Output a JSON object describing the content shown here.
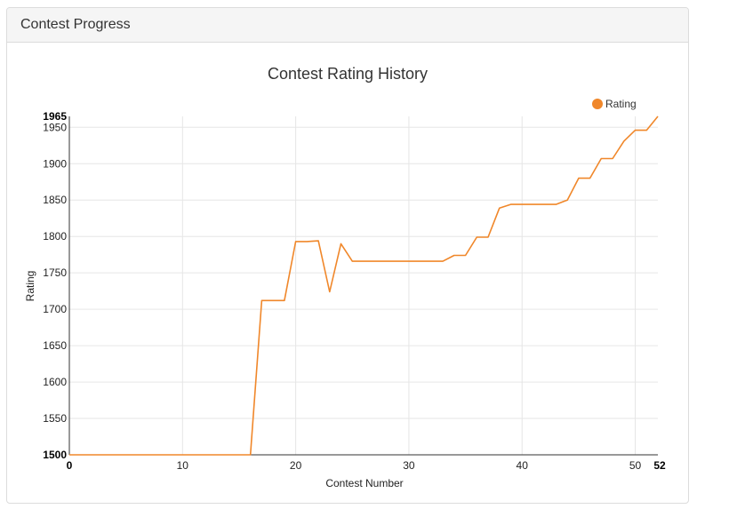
{
  "panel": {
    "title": "Contest Progress"
  },
  "chart_data": {
    "type": "line",
    "title": "Contest Rating History",
    "xlabel": "Contest Number",
    "ylabel": "Rating",
    "xlim": [
      0,
      52
    ],
    "ylim": [
      1500,
      1965
    ],
    "x_ticks": [
      0,
      10,
      20,
      30,
      40,
      50,
      52
    ],
    "x_tick_labels": [
      "0",
      "10",
      "20",
      "30",
      "40",
      "50",
      "52"
    ],
    "y_ticks": [
      1500,
      1550,
      1600,
      1650,
      1700,
      1750,
      1800,
      1850,
      1900,
      1950,
      1965
    ],
    "y_tick_labels": [
      "1500",
      "1550",
      "1600",
      "1650",
      "1700",
      "1750",
      "1800",
      "1850",
      "1900",
      "1950",
      "1965"
    ],
    "grid": true,
    "legend": "top-right",
    "series": [
      {
        "name": "Rating",
        "color": "#f0872a",
        "x": [
          0,
          16,
          17,
          18,
          19,
          20,
          21,
          22,
          23,
          24,
          25,
          26,
          27,
          28,
          29,
          30,
          31,
          32,
          33,
          34,
          35,
          36,
          37,
          38,
          39,
          40,
          41,
          42,
          43,
          44,
          45,
          46,
          47,
          48,
          49,
          50,
          51,
          52
        ],
        "values": [
          1500,
          1500,
          1712,
          1712,
          1712,
          1793,
          1793,
          1794,
          1724,
          1790,
          1766,
          1766,
          1766,
          1766,
          1766,
          1766,
          1766,
          1766,
          1766,
          1774,
          1774,
          1799,
          1799,
          1839,
          1844,
          1844,
          1844,
          1844,
          1844,
          1850,
          1880,
          1880,
          1907,
          1907,
          1931,
          1946,
          1946,
          1965
        ]
      }
    ]
  }
}
